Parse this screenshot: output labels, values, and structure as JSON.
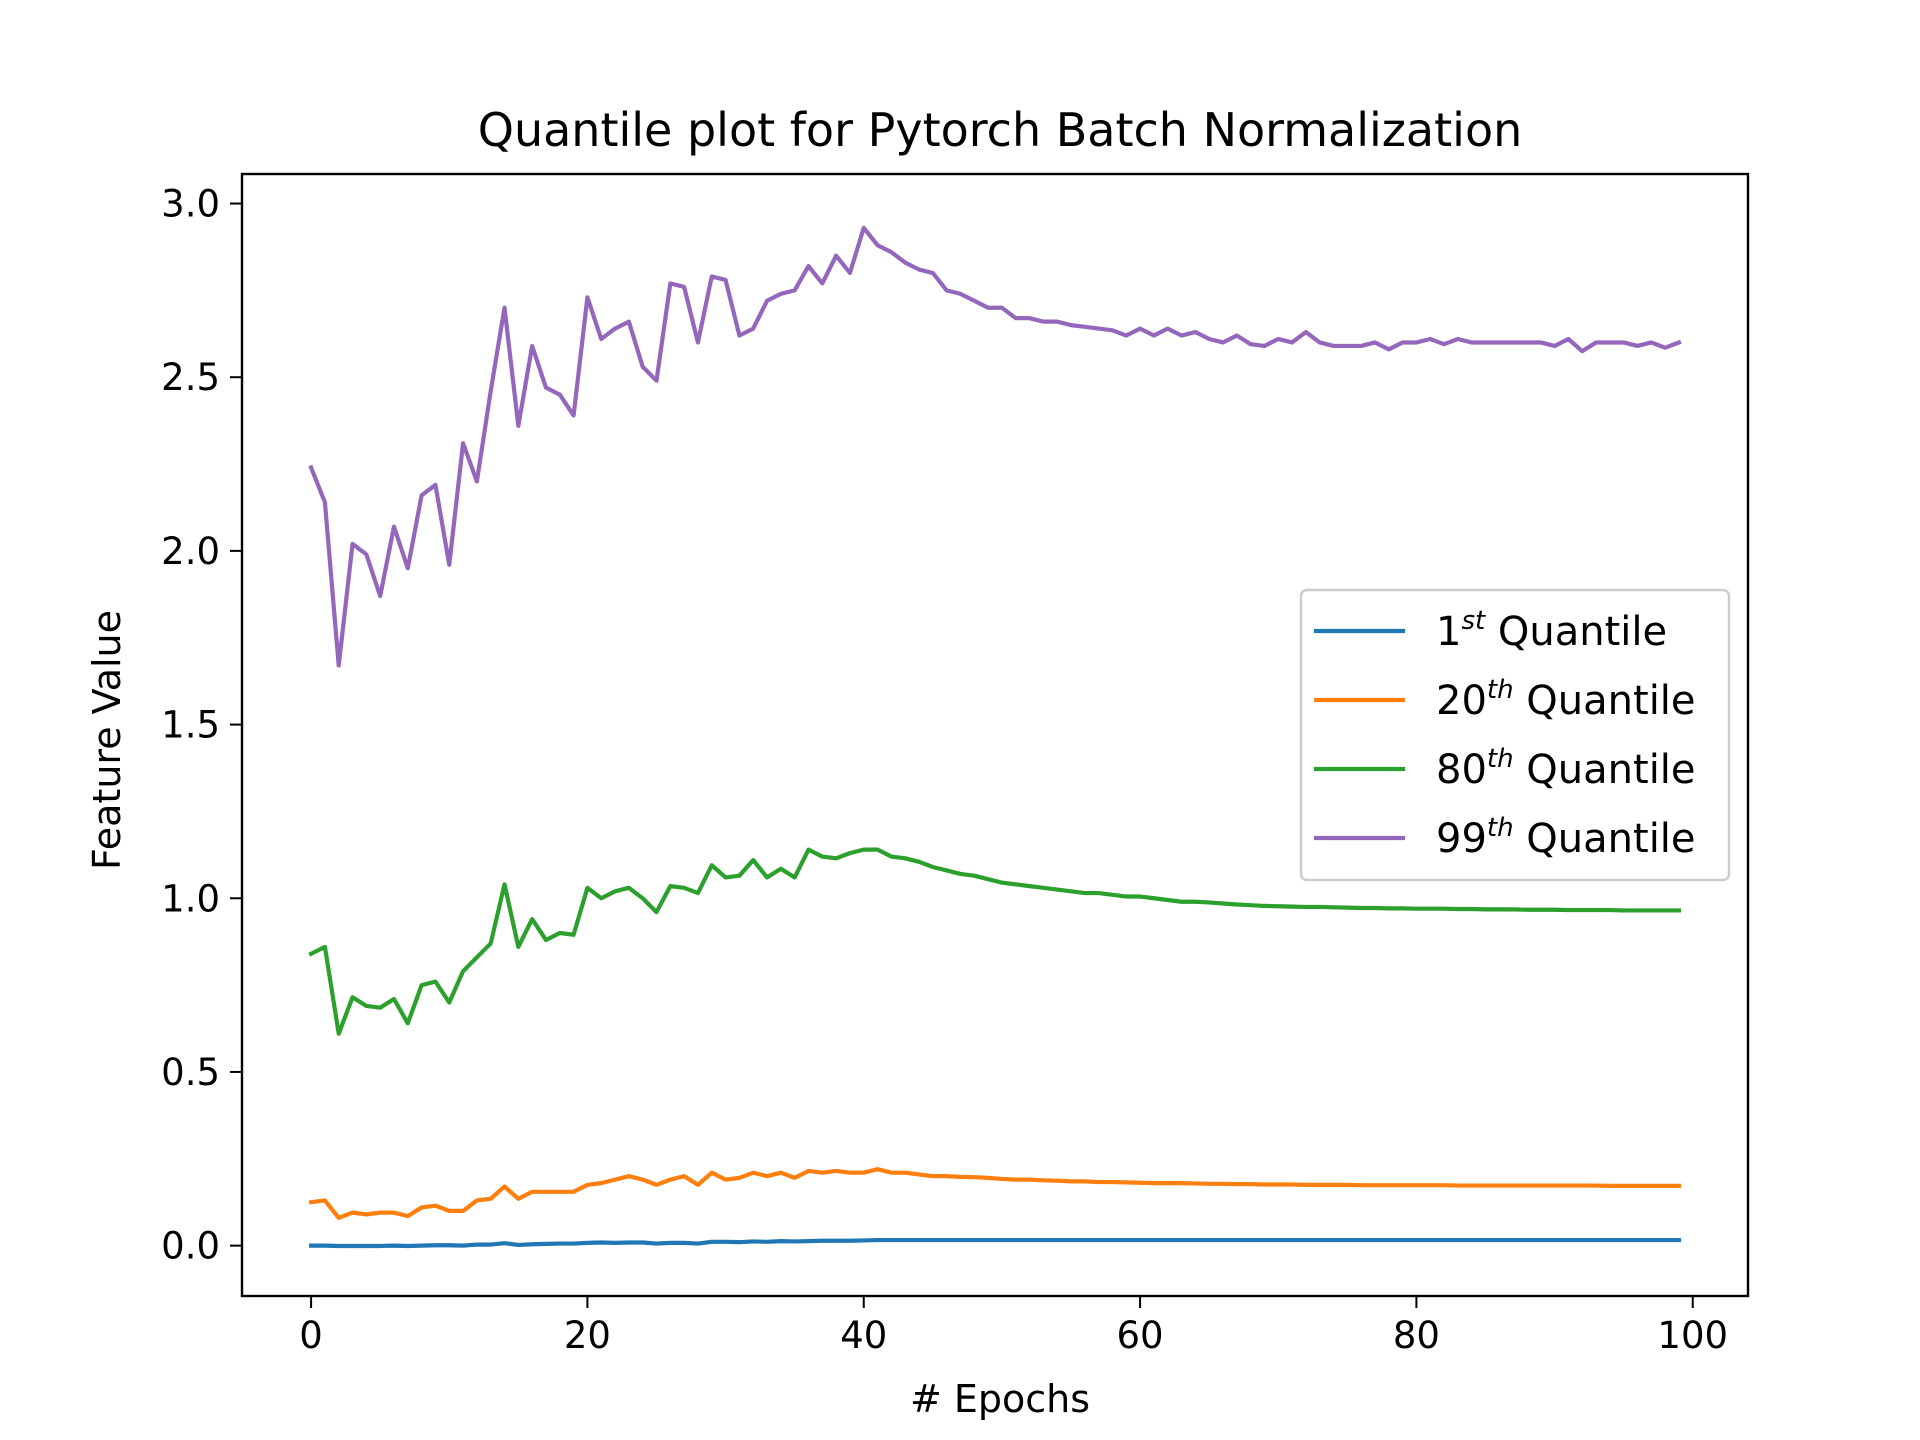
{
  "chart_data": {
    "type": "line",
    "title": "Quantile plot for Pytorch Batch Normalization",
    "xlabel": "# Epochs",
    "ylabel": "Feature Value",
    "xlim": [
      -5,
      104
    ],
    "ylim": [
      -0.145,
      3.085
    ],
    "xticks": [
      0,
      20,
      40,
      60,
      80,
      100
    ],
    "xtick_labels": [
      "0",
      "20",
      "40",
      "60",
      "80",
      "100"
    ],
    "yticks": [
      0.0,
      0.5,
      1.0,
      1.5,
      2.0,
      2.5,
      3.0
    ],
    "ytick_labels": [
      "0.0",
      "0.5",
      "1.0",
      "1.5",
      "2.0",
      "2.5",
      "3.0"
    ],
    "grid": false,
    "legend_position": "center-right",
    "x_start": 0,
    "x_step": 1,
    "series": [
      {
        "name": "1st Quantile",
        "legend_base": "1",
        "legend_sup": "st",
        "legend_rest": " Quantile",
        "color": "#1f77b4",
        "values": [
          0.0,
          0.0,
          -0.001,
          -0.001,
          -0.001,
          -0.001,
          0.0,
          -0.001,
          0.0,
          0.001,
          0.001,
          0.0,
          0.003,
          0.003,
          0.007,
          0.002,
          0.004,
          0.005,
          0.006,
          0.006,
          0.008,
          0.009,
          0.008,
          0.009,
          0.009,
          0.006,
          0.008,
          0.008,
          0.006,
          0.011,
          0.011,
          0.01,
          0.012,
          0.011,
          0.013,
          0.012,
          0.013,
          0.014,
          0.014,
          0.014,
          0.015,
          0.016,
          0.016,
          0.016,
          0.016,
          0.016,
          0.016,
          0.016,
          0.016,
          0.016,
          0.016,
          0.016,
          0.016,
          0.016,
          0.016,
          0.016,
          0.016,
          0.016,
          0.016,
          0.016,
          0.016,
          0.016,
          0.016,
          0.016,
          0.016,
          0.016,
          0.016,
          0.016,
          0.016,
          0.016,
          0.016,
          0.016,
          0.016,
          0.016,
          0.016,
          0.016,
          0.016,
          0.016,
          0.016,
          0.016,
          0.016,
          0.016,
          0.016,
          0.016,
          0.016,
          0.016,
          0.016,
          0.016,
          0.016,
          0.016,
          0.016,
          0.016,
          0.016,
          0.016,
          0.016,
          0.016,
          0.016,
          0.016,
          0.016,
          0.016
        ]
      },
      {
        "name": "20th Quantile",
        "legend_base": "20",
        "legend_sup": "th",
        "legend_rest": " Quantile",
        "color": "#ff7f0e",
        "values": [
          0.125,
          0.13,
          0.08,
          0.095,
          0.09,
          0.095,
          0.095,
          0.085,
          0.11,
          0.115,
          0.1,
          0.1,
          0.13,
          0.135,
          0.17,
          0.135,
          0.155,
          0.155,
          0.155,
          0.155,
          0.175,
          0.18,
          0.19,
          0.2,
          0.19,
          0.175,
          0.19,
          0.2,
          0.175,
          0.21,
          0.19,
          0.195,
          0.21,
          0.2,
          0.21,
          0.195,
          0.215,
          0.21,
          0.215,
          0.21,
          0.21,
          0.22,
          0.21,
          0.21,
          0.205,
          0.2,
          0.2,
          0.198,
          0.197,
          0.195,
          0.192,
          0.19,
          0.19,
          0.188,
          0.187,
          0.185,
          0.185,
          0.183,
          0.183,
          0.182,
          0.181,
          0.18,
          0.18,
          0.18,
          0.179,
          0.178,
          0.178,
          0.177,
          0.177,
          0.176,
          0.176,
          0.176,
          0.175,
          0.175,
          0.175,
          0.175,
          0.174,
          0.174,
          0.174,
          0.174,
          0.174,
          0.174,
          0.174,
          0.173,
          0.173,
          0.173,
          0.173,
          0.173,
          0.173,
          0.173,
          0.173,
          0.173,
          0.173,
          0.173,
          0.172,
          0.172,
          0.172,
          0.172,
          0.172,
          0.172
        ]
      },
      {
        "name": "80th Quantile",
        "legend_base": "80",
        "legend_sup": "th",
        "legend_rest": " Quantile",
        "color": "#2ca02c",
        "values": [
          0.84,
          0.86,
          0.61,
          0.715,
          0.69,
          0.685,
          0.71,
          0.64,
          0.75,
          0.76,
          0.7,
          0.79,
          0.83,
          0.87,
          1.04,
          0.86,
          0.94,
          0.88,
          0.9,
          0.895,
          1.03,
          1.0,
          1.02,
          1.03,
          1.0,
          0.96,
          1.035,
          1.03,
          1.015,
          1.095,
          1.06,
          1.065,
          1.11,
          1.06,
          1.085,
          1.06,
          1.14,
          1.12,
          1.115,
          1.13,
          1.14,
          1.14,
          1.12,
          1.115,
          1.105,
          1.09,
          1.08,
          1.07,
          1.065,
          1.055,
          1.045,
          1.04,
          1.035,
          1.03,
          1.025,
          1.02,
          1.015,
          1.015,
          1.01,
          1.005,
          1.005,
          1.0,
          0.995,
          0.99,
          0.99,
          0.988,
          0.985,
          0.982,
          0.98,
          0.978,
          0.977,
          0.976,
          0.975,
          0.975,
          0.974,
          0.973,
          0.972,
          0.972,
          0.971,
          0.971,
          0.97,
          0.97,
          0.97,
          0.969,
          0.969,
          0.968,
          0.968,
          0.968,
          0.967,
          0.967,
          0.967,
          0.966,
          0.966,
          0.966,
          0.966,
          0.965,
          0.965,
          0.965,
          0.965,
          0.965
        ]
      },
      {
        "name": "99th Quantile",
        "legend_base": "99",
        "legend_sup": "th",
        "legend_rest": " Quantile",
        "color": "#9467bd",
        "values": [
          2.24,
          2.14,
          1.67,
          2.02,
          1.99,
          1.87,
          2.07,
          1.95,
          2.16,
          2.19,
          1.96,
          2.31,
          2.2,
          2.46,
          2.7,
          2.36,
          2.59,
          2.47,
          2.45,
          2.39,
          2.73,
          2.61,
          2.64,
          2.66,
          2.53,
          2.49,
          2.77,
          2.76,
          2.6,
          2.79,
          2.78,
          2.62,
          2.64,
          2.72,
          2.74,
          2.75,
          2.82,
          2.77,
          2.85,
          2.8,
          2.93,
          2.88,
          2.86,
          2.83,
          2.81,
          2.8,
          2.75,
          2.74,
          2.72,
          2.7,
          2.7,
          2.67,
          2.67,
          2.66,
          2.66,
          2.65,
          2.645,
          2.64,
          2.635,
          2.62,
          2.64,
          2.62,
          2.64,
          2.62,
          2.63,
          2.61,
          2.6,
          2.62,
          2.595,
          2.59,
          2.61,
          2.6,
          2.63,
          2.6,
          2.59,
          2.59,
          2.59,
          2.6,
          2.58,
          2.6,
          2.6,
          2.61,
          2.595,
          2.61,
          2.6,
          2.6,
          2.6,
          2.6,
          2.6,
          2.6,
          2.59,
          2.61,
          2.575,
          2.6,
          2.6,
          2.6,
          2.59,
          2.6,
          2.585,
          2.6
        ]
      }
    ]
  }
}
